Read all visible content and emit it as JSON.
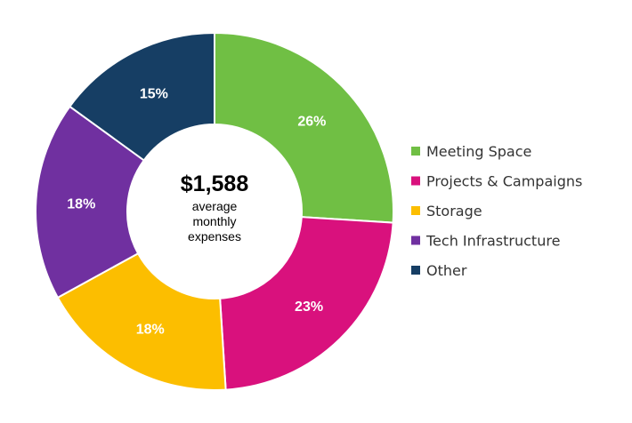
{
  "chart_data": {
    "type": "pie",
    "variant": "donut",
    "series": [
      {
        "name": "Meeting Space",
        "value": 26,
        "label": "26%",
        "color": "#70BF44"
      },
      {
        "name": "Projects & Campaigns",
        "value": 23,
        "label": "23%",
        "color": "#D9117D"
      },
      {
        "name": "Storage",
        "value": 18,
        "label": "18%",
        "color": "#FCBE00"
      },
      {
        "name": "Tech Infrastructure",
        "value": 18,
        "label": "18%",
        "color": "#7030A0"
      },
      {
        "name": "Other",
        "value": 15,
        "label": "15%",
        "color": "#163E64"
      }
    ],
    "center_text": {
      "value": "$1,588",
      "lines": [
        "average",
        "monthly",
        "expenses"
      ]
    },
    "legend_position": "right",
    "start_angle": "top",
    "direction": "clockwise"
  }
}
